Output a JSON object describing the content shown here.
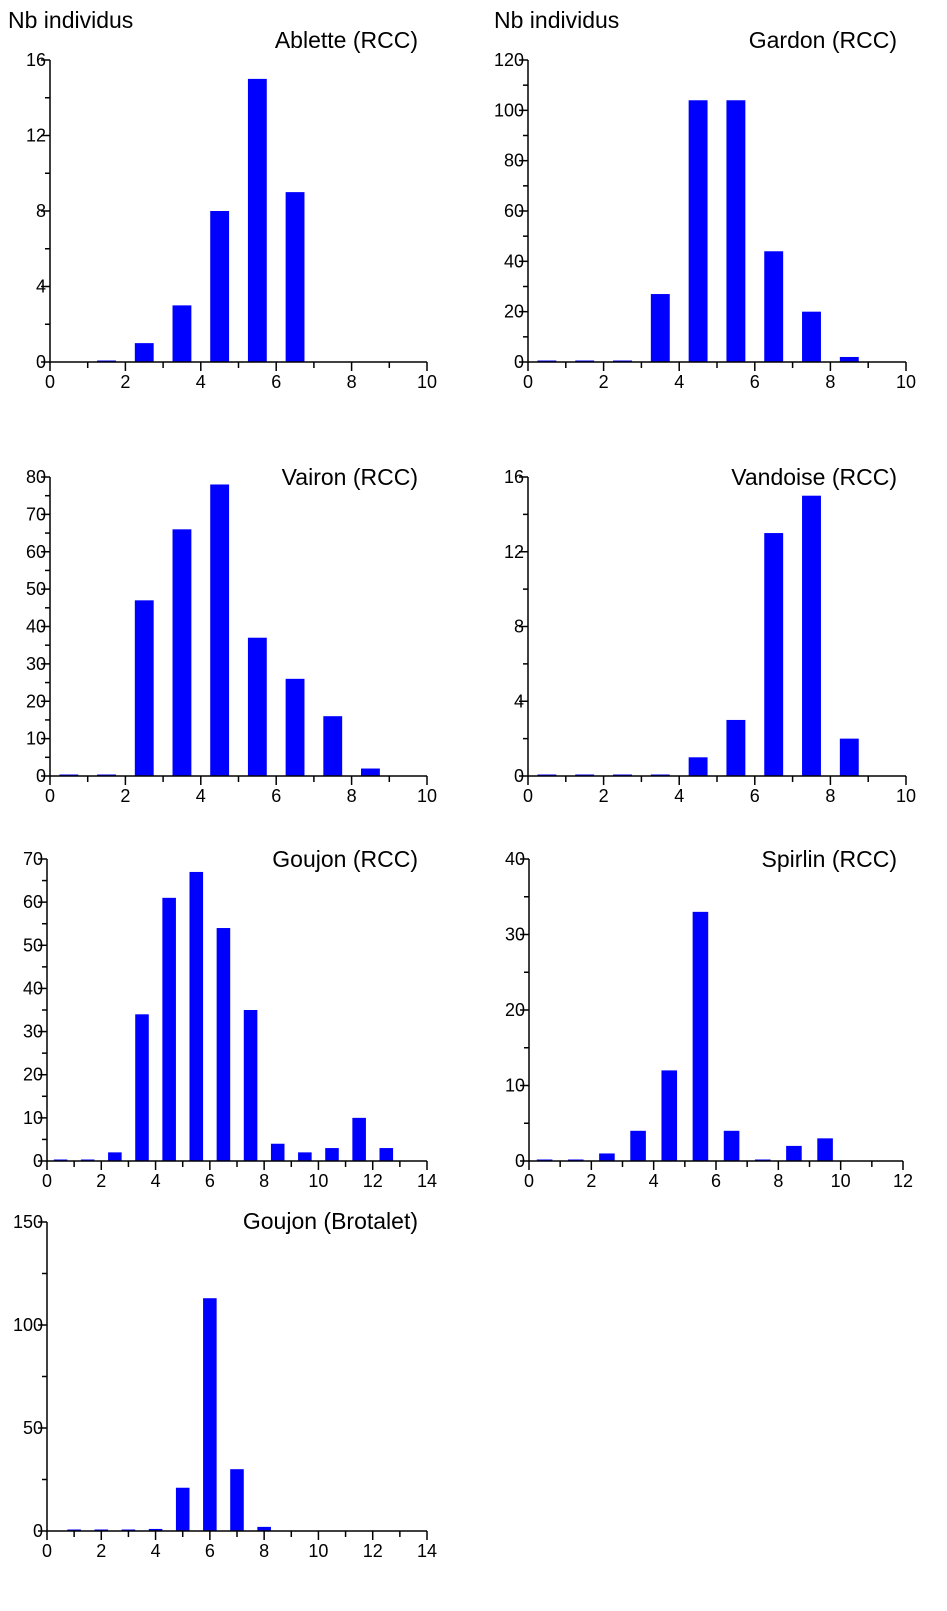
{
  "chart_data": [
    {
      "type": "bar",
      "title": "Ablette (RCC)",
      "ylabel": "Nb individus",
      "xlim": [
        0,
        10
      ],
      "ylim": [
        0,
        16
      ],
      "xticks": [
        0,
        2,
        4,
        6,
        8,
        10
      ],
      "yticks": [
        0,
        4,
        8,
        12,
        16
      ],
      "x": [
        1.5,
        2.5,
        3.5,
        4.5,
        5.5,
        6.5
      ],
      "values": [
        0,
        1,
        3,
        8,
        15,
        9
      ],
      "color": "#0000ff"
    },
    {
      "type": "bar",
      "title": "Gardon (RCC)",
      "ylabel": "Nb individus",
      "xlim": [
        0,
        10
      ],
      "ylim": [
        0,
        120
      ],
      "xticks": [
        0,
        2,
        4,
        6,
        8,
        10
      ],
      "yticks": [
        0,
        20,
        40,
        60,
        80,
        100,
        120
      ],
      "x": [
        0.5,
        1.5,
        2.5,
        3.5,
        4.5,
        5.5,
        6.5,
        7.5,
        8.5
      ],
      "values": [
        0,
        0,
        0,
        27,
        104,
        104,
        44,
        20,
        2
      ],
      "color": "#0000ff"
    },
    {
      "type": "bar",
      "title": "Vairon (RCC)",
      "ylabel": "",
      "xlim": [
        0,
        10
      ],
      "ylim": [
        0,
        80
      ],
      "xticks": [
        0,
        2,
        4,
        6,
        8,
        10
      ],
      "yticks": [
        0,
        10,
        20,
        30,
        40,
        50,
        60,
        70,
        80
      ],
      "x": [
        0.5,
        1.5,
        2.5,
        3.5,
        4.5,
        5.5,
        6.5,
        7.5,
        8.5
      ],
      "values": [
        0,
        0,
        47,
        66,
        78,
        37,
        26,
        16,
        2
      ],
      "color": "#0000ff"
    },
    {
      "type": "bar",
      "title": "Vandoise (RCC)",
      "ylabel": "",
      "xlim": [
        0,
        10
      ],
      "ylim": [
        0,
        16
      ],
      "xticks": [
        0,
        2,
        4,
        6,
        8,
        10
      ],
      "yticks": [
        0,
        4,
        8,
        12,
        16
      ],
      "x": [
        0.5,
        1.5,
        2.5,
        3.5,
        4.5,
        5.5,
        6.5,
        7.5,
        8.5
      ],
      "values": [
        0,
        0,
        0,
        0,
        1,
        3,
        13,
        15,
        2
      ],
      "color": "#0000ff"
    },
    {
      "type": "bar",
      "title": "Goujon (RCC)",
      "ylabel": "",
      "xlim": [
        0,
        14
      ],
      "ylim": [
        0,
        70
      ],
      "xticks": [
        0,
        2,
        4,
        6,
        8,
        10,
        12,
        14
      ],
      "yticks": [
        0,
        10,
        20,
        30,
        40,
        50,
        60,
        70
      ],
      "x": [
        0.5,
        1.5,
        2.5,
        3.5,
        4.5,
        5.5,
        6.5,
        7.5,
        8.5,
        9.5,
        10.5,
        11.5,
        12.5
      ],
      "values": [
        0,
        0,
        2,
        34,
        61,
        67,
        54,
        35,
        4,
        2,
        3,
        10,
        3
      ],
      "color": "#0000ff"
    },
    {
      "type": "bar",
      "title": "Spirlin (RCC)",
      "ylabel": "",
      "xlim": [
        0,
        12
      ],
      "ylim": [
        0,
        40
      ],
      "xticks": [
        0,
        2,
        4,
        6,
        8,
        10,
        12
      ],
      "yticks": [
        0,
        10,
        20,
        30,
        40
      ],
      "x": [
        0.5,
        1.5,
        2.5,
        3.5,
        4.5,
        5.5,
        6.5,
        7.5,
        8.5,
        9.5
      ],
      "values": [
        0,
        0,
        1,
        4,
        12,
        33,
        4,
        0,
        2,
        3
      ],
      "color": "#0000ff"
    },
    {
      "type": "bar",
      "title": "Goujon (Brotalet)",
      "ylabel": "",
      "xlim": [
        0,
        14
      ],
      "ylim": [
        0,
        150
      ],
      "xticks": [
        0,
        2,
        4,
        6,
        8,
        10,
        12,
        14
      ],
      "yticks": [
        0,
        50,
        100,
        150
      ],
      "x": [
        1,
        2,
        3,
        4,
        5,
        6,
        7,
        8
      ],
      "values": [
        0,
        0,
        0,
        1,
        21,
        113,
        30,
        2
      ],
      "color": "#0000ff"
    }
  ]
}
